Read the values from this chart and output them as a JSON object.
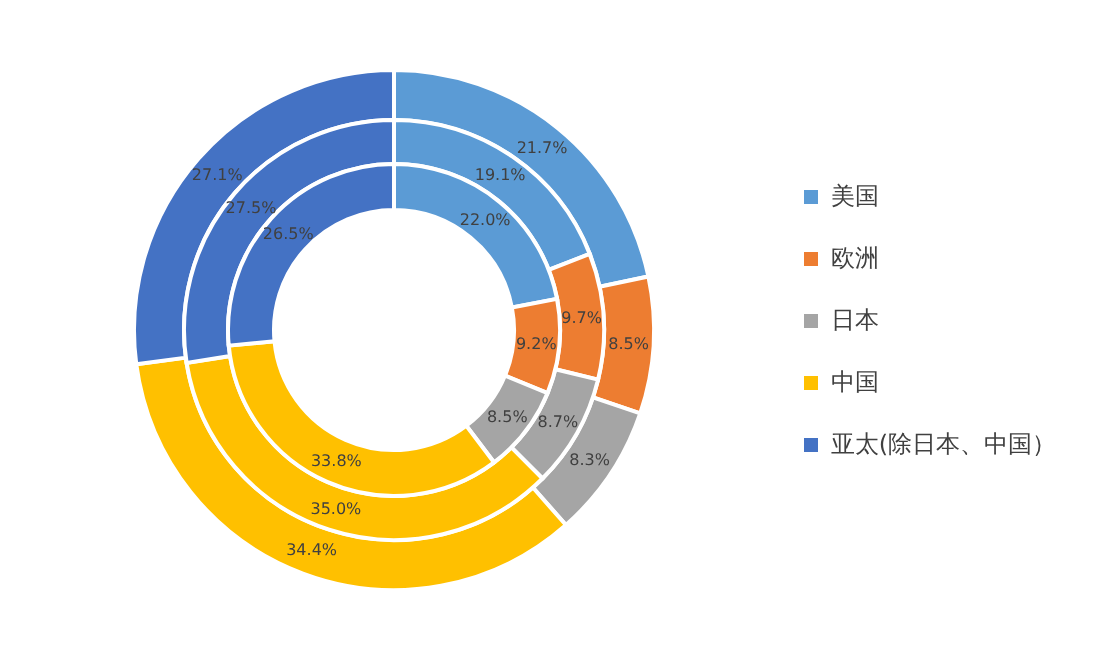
{
  "chart_data": {
    "type": "donut",
    "categories": [
      "美国",
      "欧洲",
      "日本",
      "中国",
      "亚太(除日本、中国）"
    ],
    "colors": [
      "#5b9bd5",
      "#ed7d31",
      "#a5a5a5",
      "#ffc000",
      "#4472c4"
    ],
    "series": [
      {
        "values": [
          21.7,
          8.5,
          8.3,
          34.4,
          27.1
        ],
        "value_labels": [
          "21.7%",
          "8.5%",
          "8.3%",
          "34.4%",
          "27.1%"
        ]
      },
      {
        "values": [
          19.1,
          9.7,
          8.7,
          35.0,
          27.5
        ],
        "value_labels": [
          "19.1%",
          "9.7%",
          "8.7%",
          "35.0%",
          "27.5%"
        ]
      },
      {
        "values": [
          22.0,
          9.2,
          8.5,
          33.8,
          26.5
        ],
        "value_labels": [
          "22.0%",
          "9.2%",
          "8.5%",
          "33.8%",
          "26.5%"
        ]
      }
    ],
    "legend": "right"
  }
}
